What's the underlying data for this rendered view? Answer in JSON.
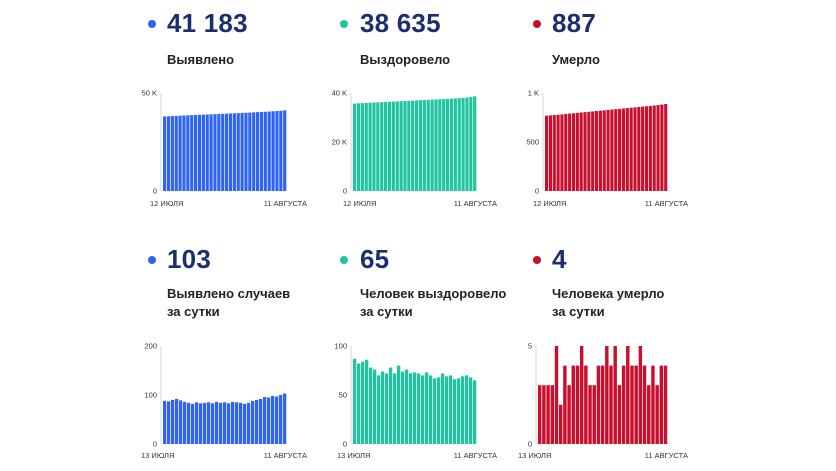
{
  "colors": {
    "blue": "#2f64f2",
    "teal": "#1fc4a0",
    "red": "#c8102e",
    "number": "#1b2f6e"
  },
  "top": {
    "x_start": "12 ИЮЛЯ",
    "x_end": "11 АВГУСТА",
    "panels": [
      {
        "value": "41 183",
        "label_lines": [
          "Выявлено"
        ],
        "color": "blue"
      },
      {
        "value": "38 635",
        "label_lines": [
          "Выздоровело"
        ],
        "color": "teal"
      },
      {
        "value": "887",
        "label_lines": [
          "Умерло"
        ],
        "color": "red"
      }
    ]
  },
  "bottom": {
    "x_start": "13 ИЮЛЯ",
    "x_end": "11 АВГУСТА",
    "panels": [
      {
        "value": "103",
        "label_lines": [
          "Выявлено случаев",
          "за сутки"
        ],
        "color": "blue"
      },
      {
        "value": "65",
        "label_lines": [
          "Человек выздоровело",
          "за сутки"
        ],
        "color": "teal"
      },
      {
        "value": "4",
        "label_lines": [
          "Человека умерло",
          "за сутки"
        ],
        "color": "red"
      }
    ]
  },
  "chart_data": [
    {
      "type": "bar",
      "color": "blue",
      "ylim": [
        0,
        50000
      ],
      "yticks": [
        0,
        50000
      ],
      "ytick_labels": [
        "0",
        "50 K"
      ],
      "x_labels": [
        "12 ИЮЛЯ",
        "11 АВГУСТА"
      ],
      "values": [
        38020,
        38120,
        38220,
        38320,
        38420,
        38520,
        38620,
        38720,
        38800,
        38880,
        38960,
        39040,
        39120,
        39200,
        39290,
        39380,
        39470,
        39560,
        39650,
        39740,
        39830,
        39920,
        40020,
        40120,
        40220,
        40330,
        40440,
        40560,
        40680,
        40800,
        40930,
        41183
      ]
    },
    {
      "type": "bar",
      "color": "teal",
      "ylim": [
        0,
        40000
      ],
      "yticks": [
        0,
        20000,
        40000
      ],
      "ytick_labels": [
        "0",
        "20 K",
        "40 K"
      ],
      "x_labels": [
        "12 ИЮЛЯ",
        "11 АВГУСТА"
      ],
      "values": [
        35700,
        35780,
        35860,
        35940,
        36020,
        36100,
        36180,
        36260,
        36340,
        36420,
        36500,
        36580,
        36660,
        36740,
        36820,
        36900,
        36980,
        37060,
        37140,
        37220,
        37300,
        37380,
        37460,
        37540,
        37620,
        37700,
        37790,
        37880,
        37980,
        38150,
        38380,
        38635
      ]
    },
    {
      "type": "bar",
      "color": "red",
      "ylim": [
        0,
        1000
      ],
      "yticks": [
        0,
        500,
        1000
      ],
      "ytick_labels": [
        "0",
        "500",
        "1 K"
      ],
      "x_labels": [
        "12 ИЮЛЯ",
        "11 АВГУСТА"
      ],
      "values": [
        768,
        772,
        775,
        778,
        782,
        786,
        790,
        793,
        797,
        801,
        805,
        808,
        812,
        816,
        820,
        823,
        827,
        831,
        835,
        838,
        842,
        846,
        850,
        853,
        857,
        861,
        865,
        868,
        872,
        877,
        882,
        887
      ]
    },
    {
      "type": "bar",
      "color": "blue",
      "ylim": [
        0,
        200
      ],
      "yticks": [
        0,
        100,
        200
      ],
      "ytick_labels": [
        "0",
        "100",
        "200"
      ],
      "x_labels": [
        "13 ИЮЛЯ",
        "11 АВГУСТА"
      ],
      "values": [
        88,
        87,
        90,
        92,
        89,
        86,
        84,
        82,
        85,
        83,
        84,
        85,
        83,
        86,
        84,
        85,
        83,
        86,
        85,
        84,
        82,
        84,
        88,
        90,
        92,
        96,
        95,
        98,
        97,
        100,
        103
      ]
    },
    {
      "type": "bar",
      "color": "teal",
      "ylim": [
        0,
        100
      ],
      "yticks": [
        0,
        50,
        100
      ],
      "ytick_labels": [
        "0",
        "50",
        "100"
      ],
      "x_labels": [
        "13 ИЮЛЯ",
        "11 АВГУСТА"
      ],
      "values": [
        87,
        82,
        84,
        86,
        78,
        76,
        70,
        74,
        72,
        78,
        72,
        80,
        74,
        76,
        72,
        73,
        72,
        70,
        73,
        70,
        67,
        68,
        72,
        69,
        70,
        66,
        67,
        69,
        70,
        68,
        65
      ]
    },
    {
      "type": "bar",
      "color": "red",
      "ylim": [
        0,
        5
      ],
      "yticks": [
        0,
        5
      ],
      "ytick_labels": [
        "0",
        "5"
      ],
      "x_labels": [
        "13 ИЮЛЯ",
        "11 АВГУСТА"
      ],
      "values": [
        3,
        3,
        3,
        3,
        5,
        2,
        4,
        3,
        4,
        4,
        5,
        4,
        3,
        3,
        4,
        4,
        5,
        4,
        5,
        3,
        4,
        5,
        4,
        4,
        5,
        4,
        3,
        4,
        3,
        4,
        4
      ]
    }
  ]
}
